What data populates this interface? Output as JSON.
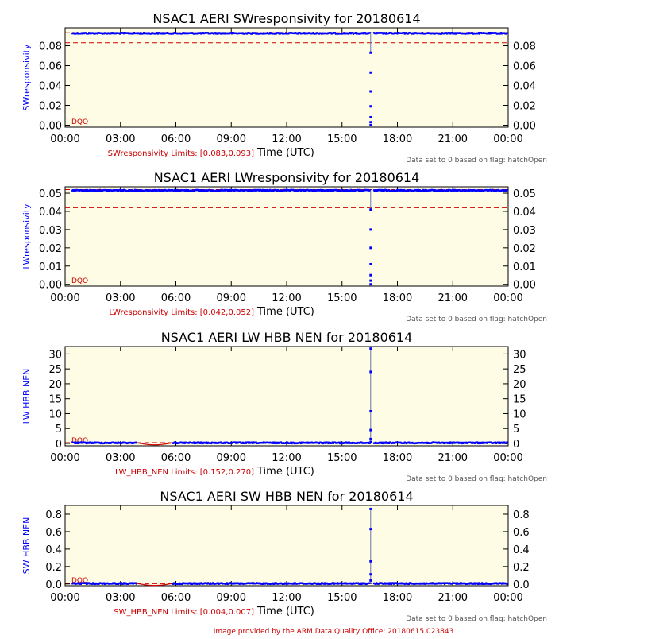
{
  "colors": {
    "plot_bg": "#fffce6",
    "data": "#0000ff",
    "limits": "#cc0000",
    "axis": "#000000",
    "gray_note": "#555555"
  },
  "footer": "Image provided by the ARM Data Quality Office: 20180615.023843",
  "chart_data": [
    {
      "type": "scatter",
      "title": "NSAC1  AERI SWresponsivity for 20180614",
      "ylabel": "SWresponsivity",
      "xlabel": "Time (UTC)",
      "xticks": [
        "00:00",
        "03:00",
        "06:00",
        "09:00",
        "12:00",
        "15:00",
        "18:00",
        "21:00",
        "00:00"
      ],
      "xlim": [
        0,
        24
      ],
      "yticks": [
        "0.00",
        "0.02",
        "0.04",
        "0.06",
        "0.08"
      ],
      "ytick_values": [
        0,
        0.02,
        0.04,
        0.06,
        0.08
      ],
      "ylim": [
        -0.002,
        0.098
      ],
      "limits_text": "SWresponsivity Limits: [0.083,0.093]",
      "limits": [
        0.083,
        0.093
      ],
      "dqo_label": "DQO",
      "flag_note": "Data set to 0 based on flag: hatchOpen",
      "baseline": 0.0925,
      "spike": {
        "x": 16.55,
        "values": [
          0.073,
          0.053,
          0.034,
          0.019,
          0.008,
          0.003,
          0.0
        ]
      },
      "gap": [
        16.55,
        16.72
      ],
      "dip": null
    },
    {
      "type": "scatter",
      "title": "NSAC1  AERI LWresponsivity for 20180614",
      "ylabel": "LWresponsivity",
      "xlabel": "Time (UTC)",
      "xticks": [
        "00:00",
        "03:00",
        "06:00",
        "09:00",
        "12:00",
        "15:00",
        "18:00",
        "21:00",
        "00:00"
      ],
      "xlim": [
        0,
        24
      ],
      "yticks": [
        "0.00",
        "0.01",
        "0.02",
        "0.03",
        "0.04",
        "0.05"
      ],
      "ytick_values": [
        0,
        0.01,
        0.02,
        0.03,
        0.04,
        0.05
      ],
      "ylim": [
        -0.001,
        0.0535
      ],
      "limits_text": "LWresponsivity Limits: [0.042,0.052]",
      "limits": [
        0.042,
        0.052
      ],
      "dqo_label": "DQO",
      "flag_note": "Data set to 0 based on flag: hatchOpen",
      "baseline": 0.0515,
      "spike": {
        "x": 16.55,
        "values": [
          0.041,
          0.03,
          0.02,
          0.011,
          0.005,
          0.002,
          0.0
        ]
      },
      "gap": [
        16.55,
        16.72
      ],
      "dip": null
    },
    {
      "type": "scatter",
      "title": "NSAC1  AERI LW HBB NEN for 20180614",
      "ylabel": "LW HBB NEN",
      "xlabel": "Time (UTC)",
      "xticks": [
        "00:00",
        "03:00",
        "06:00",
        "09:00",
        "12:00",
        "15:00",
        "18:00",
        "21:00",
        "00:00"
      ],
      "xlim": [
        0,
        24
      ],
      "yticks": [
        "0",
        "5",
        "10",
        "15",
        "20",
        "25",
        "30"
      ],
      "ytick_values": [
        0,
        5,
        10,
        15,
        20,
        25,
        30
      ],
      "ylim": [
        -0.8,
        32.5
      ],
      "limits_text": "LW_HBB_NEN Limits: [0.152,0.270]",
      "limits": [
        0.152,
        0.27
      ],
      "dqo_label": "DQO",
      "flag_note": "Data set to 0 based on flag: hatchOpen",
      "baseline": 0.2,
      "spike": {
        "x": 16.55,
        "values": [
          31.8,
          24.0,
          10.8,
          4.5,
          1.5,
          0.5
        ]
      },
      "gap": [
        16.55,
        16.72
      ],
      "dip": [
        3.9,
        5.8
      ]
    },
    {
      "type": "scatter",
      "title": "NSAC1  AERI SW HBB NEN for 20180614",
      "ylabel": "SW HBB NEN",
      "xlabel": "Time (UTC)",
      "xticks": [
        "00:00",
        "03:00",
        "06:00",
        "09:00",
        "12:00",
        "15:00",
        "18:00",
        "21:00",
        "00:00"
      ],
      "xlim": [
        0,
        24
      ],
      "yticks": [
        "0.0",
        "0.2",
        "0.4",
        "0.6",
        "0.8"
      ],
      "ytick_values": [
        0,
        0.2,
        0.4,
        0.6,
        0.8
      ],
      "ylim": [
        -0.02,
        0.9
      ],
      "limits_text": "SW_HBB_NEN Limits: [0.004,0.007]",
      "limits": [
        0.004,
        0.007
      ],
      "dqo_label": "DQO",
      "flag_note": "Data set to 0 based on flag: hatchOpen",
      "baseline": 0.006,
      "spike": {
        "x": 16.55,
        "values": [
          0.86,
          0.63,
          0.26,
          0.11,
          0.04
        ]
      },
      "gap": [
        16.55,
        16.72
      ],
      "dip": [
        3.9,
        5.8
      ]
    }
  ]
}
